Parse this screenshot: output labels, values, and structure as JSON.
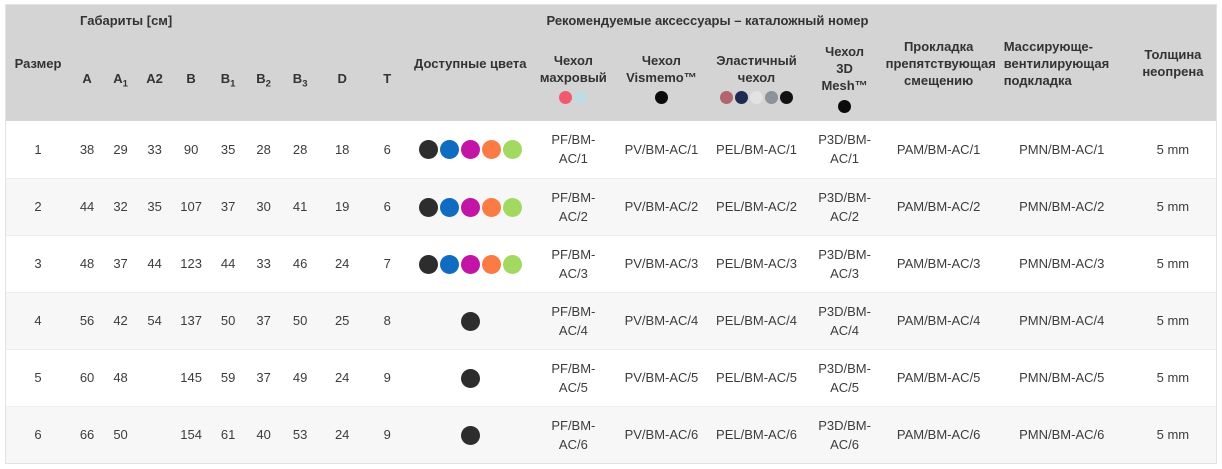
{
  "header": {
    "dimensions_group": "Габариты [см]",
    "accessories_group": "Рекомендуемые аксессуары – каталожный номер",
    "size": "Размер",
    "available_colors": "Доступные цвета",
    "anti_slip_pad": "Прокладка\nпрепятствующая\nсмещению",
    "massage_pad": "Массирующе-\nвентилирующая\nподкладка",
    "neoprene_thickness": "Толщина\nнеопрена"
  },
  "dimension_columns": [
    {
      "base": "A",
      "sub": ""
    },
    {
      "base": "A",
      "sub": "1"
    },
    {
      "base": "A2",
      "sub": ""
    },
    {
      "base": "B",
      "sub": ""
    },
    {
      "base": "B",
      "sub": "1"
    },
    {
      "base": "B",
      "sub": "2"
    },
    {
      "base": "B",
      "sub": "3"
    },
    {
      "base": "D",
      "sub": ""
    },
    {
      "base": "T",
      "sub": ""
    }
  ],
  "cover_columns": [
    {
      "id": "terry-cover",
      "label": "Чехол\nмахровый",
      "dots": [
        "#f2596f",
        "#bddce6"
      ]
    },
    {
      "id": "vismemo-cover",
      "label": "Чехол\nVismemo™",
      "dots": [
        "#0b0b0b"
      ]
    },
    {
      "id": "elastic-cover",
      "label": "Эластичный\nчехол",
      "dots": [
        "#b2646f",
        "#1d2b54",
        "#e2e2e2",
        "#8c929a",
        "#121212"
      ]
    },
    {
      "id": "mesh3d-cover",
      "label": "Чехол\n3D\nMesh™",
      "dots": [
        "#0b0b0b"
      ]
    }
  ],
  "palette": {
    "full_color_set": [
      "#2d2d2d",
      "#0f6cc0",
      "#c214a5",
      "#fb7b45",
      "#a3d960"
    ],
    "single_color_set": [
      "#2d2d2d"
    ],
    "header_background": "#d4d4d4",
    "alt_row_background": "#f7f7f7"
  },
  "rows": [
    {
      "size": "1",
      "dims": [
        "38",
        "29",
        "33",
        "90",
        "35",
        "28",
        "28",
        "18",
        "6"
      ],
      "available_colors": [
        "#2d2d2d",
        "#0f6cc0",
        "#c214a5",
        "#fb7b45",
        "#a3d960"
      ],
      "catalog": [
        "PF/BM-AC/1",
        "PV/BM-AC/1",
        "PEL/BM-AC/1",
        "P3D/BM-AC/1",
        "PAM/BM-AC/1",
        "PMN/BM-AC/1"
      ],
      "thickness": "5 mm"
    },
    {
      "size": "2",
      "dims": [
        "44",
        "32",
        "35",
        "107",
        "37",
        "30",
        "41",
        "19",
        "6"
      ],
      "available_colors": [
        "#2d2d2d",
        "#0f6cc0",
        "#c214a5",
        "#fb7b45",
        "#a3d960"
      ],
      "catalog": [
        "PF/BM-AC/2",
        "PV/BM-AC/2",
        "PEL/BM-AC/2",
        "P3D/BM-AC/2",
        "PAM/BM-AC/2",
        "PMN/BM-AC/2"
      ],
      "thickness": "5 mm"
    },
    {
      "size": "3",
      "dims": [
        "48",
        "37",
        "44",
        "123",
        "44",
        "33",
        "46",
        "24",
        "7"
      ],
      "available_colors": [
        "#2d2d2d",
        "#0f6cc0",
        "#c214a5",
        "#fb7b45",
        "#a3d960"
      ],
      "catalog": [
        "PF/BM-AC/3",
        "PV/BM-AC/3",
        "PEL/BM-AC/3",
        "P3D/BM-AC/3",
        "PAM/BM-AC/3",
        "PMN/BM-AC/3"
      ],
      "thickness": "5 mm"
    },
    {
      "size": "4",
      "dims": [
        "56",
        "42",
        "54",
        "137",
        "50",
        "37",
        "50",
        "25",
        "8"
      ],
      "available_colors": [
        "#2d2d2d"
      ],
      "catalog": [
        "PF/BM-AC/4",
        "PV/BM-AC/4",
        "PEL/BM-AC/4",
        "P3D/BM-AC/4",
        "PAM/BM-AC/4",
        "PMN/BM-AC/4"
      ],
      "thickness": "5 mm"
    },
    {
      "size": "5",
      "dims": [
        "60",
        "48",
        "",
        "145",
        "59",
        "37",
        "49",
        "24",
        "9"
      ],
      "available_colors": [
        "#2d2d2d"
      ],
      "catalog": [
        "PF/BM-AC/5",
        "PV/BM-AC/5",
        "PEL/BM-AC/5",
        "P3D/BM-AC/5",
        "PAM/BM-AC/5",
        "PMN/BM-AC/5"
      ],
      "thickness": "5 mm"
    },
    {
      "size": "6",
      "dims": [
        "66",
        "50",
        "",
        "154",
        "61",
        "40",
        "53",
        "24",
        "9"
      ],
      "available_colors": [
        "#2d2d2d"
      ],
      "catalog": [
        "PF/BM-AC/6",
        "PV/BM-AC/6",
        "PEL/BM-AC/6",
        "P3D/BM-AC/6",
        "PAM/BM-AC/6",
        "PMN/BM-AC/6"
      ],
      "thickness": "5 mm"
    }
  ]
}
